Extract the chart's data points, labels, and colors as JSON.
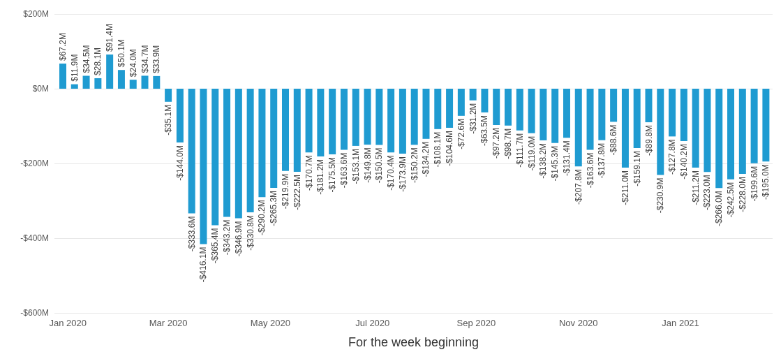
{
  "chart_data": {
    "type": "bar",
    "xlabel": "For the week beginning",
    "color": "#1f9bd1",
    "x": [
      "2019-12-29",
      "2020-01-05",
      "2020-01-12",
      "2020-01-19",
      "2020-01-26",
      "2020-02-02",
      "2020-02-09",
      "2020-02-16",
      "2020-02-23",
      "2020-03-01",
      "2020-03-08",
      "2020-03-15",
      "2020-03-22",
      "2020-03-29",
      "2020-04-05",
      "2020-04-12",
      "2020-04-19",
      "2020-04-26",
      "2020-05-03",
      "2020-05-10",
      "2020-05-17",
      "2020-05-24",
      "2020-05-31",
      "2020-06-07",
      "2020-06-14",
      "2020-06-21",
      "2020-06-28",
      "2020-07-05",
      "2020-07-12",
      "2020-07-19",
      "2020-07-26",
      "2020-08-02",
      "2020-08-09",
      "2020-08-16",
      "2020-08-23",
      "2020-08-30",
      "2020-09-06",
      "2020-09-13",
      "2020-09-20",
      "2020-09-27",
      "2020-10-04",
      "2020-10-11",
      "2020-10-18",
      "2020-10-25",
      "2020-11-01",
      "2020-11-08",
      "2020-11-15",
      "2020-11-22",
      "2020-11-29",
      "2020-12-06",
      "2020-12-13",
      "2020-12-20",
      "2020-12-27",
      "2021-01-03",
      "2021-01-10",
      "2021-01-17",
      "2021-01-24",
      "2021-01-31",
      "2021-02-07",
      "2021-02-14",
      "2021-02-21"
    ],
    "values": [
      67.2,
      11.9,
      34.5,
      28.1,
      91.4,
      50.1,
      24.0,
      34.7,
      33.9,
      -35.1,
      -144.0,
      -333.6,
      -416.1,
      -365.4,
      -343.2,
      -346.9,
      -330.8,
      -290.2,
      -265.3,
      -219.9,
      -222.5,
      -170.7,
      -181.2,
      -175.5,
      -163.6,
      -153.1,
      -149.8,
      -150.5,
      -170.4,
      -173.9,
      -150.2,
      -134.2,
      -108.1,
      -104.6,
      -72.6,
      -31.2,
      -63.5,
      -97.2,
      -98.7,
      -111.7,
      -119.0,
      -138.2,
      -145.3,
      -131.4,
      -207.8,
      -163.6,
      -137.8,
      -88.6,
      -211.0,
      -159.1,
      -89.8,
      -230.9,
      -127.8,
      -140.2,
      -211.2,
      -223.0,
      -266.0,
      -242.5,
      -228.0,
      -199.6,
      -195.0
    ],
    "value_labels": [
      "$67.2M",
      "$11.9M",
      "$34.5M",
      "$28.1M",
      "$91.4M",
      "$50.1M",
      "$24.0M",
      "$34.7M",
      "$33.9M",
      "-$35.1M",
      "-$144.0M",
      "-$333.6M",
      "-$416.1M",
      "-$365.4M",
      "-$343.2M",
      "-$346.9M",
      "-$330.8M",
      "-$290.2M",
      "-$265.3M",
      "-$219.9M",
      "-$222.5M",
      "-$170.7M",
      "-$181.2M",
      "-$175.5M",
      "-$163.6M",
      "-$153.1M",
      "-$149.8M",
      "-$150.5M",
      "-$170.4M",
      "-$173.9M",
      "-$150.2M",
      "-$134.2M",
      "-$108.1M",
      "-$104.6M",
      "-$72.6M",
      "-$31.2M",
      "-$63.5M",
      "-$97.2M",
      "-$98.7M",
      "-$111.7M",
      "-$119.0M",
      "-$138.2M",
      "-$145.3M",
      "-$131.4M",
      "-$207.8M",
      "-$163.6M",
      "-$137.8M",
      "-$88.6M",
      "-$211.0M",
      "-$159.1M",
      "-$89.8M",
      "-$230.9M",
      "-$127.8M",
      "-$140.2M",
      "-$211.2M",
      "-$223.0M",
      "-$266.0M",
      "-$242.5M",
      "-$228.0M",
      "-$199.6M",
      "-$195.0M"
    ],
    "xlim": [
      "2019-12-24",
      "2021-02-25"
    ],
    "xticks": [
      {
        "value": "2020-01-01",
        "label": "Jan 2020"
      },
      {
        "value": "2020-03-01",
        "label": "Mar 2020"
      },
      {
        "value": "2020-05-01",
        "label": "May 2020"
      },
      {
        "value": "2020-07-01",
        "label": "Jul 2020"
      },
      {
        "value": "2020-09-01",
        "label": "Sep 2020"
      },
      {
        "value": "2020-11-01",
        "label": "Nov 2020"
      },
      {
        "value": "2021-01-01",
        "label": "Jan 2021"
      }
    ],
    "ylim": [
      -600,
      200
    ],
    "yticks": [
      {
        "value": -600,
        "label": "-$600M"
      },
      {
        "value": -400,
        "label": "-$400M"
      },
      {
        "value": -200,
        "label": "-$200M"
      },
      {
        "value": 0,
        "label": "$0M"
      },
      {
        "value": 200,
        "label": "$200M"
      }
    ],
    "grid": "y"
  }
}
